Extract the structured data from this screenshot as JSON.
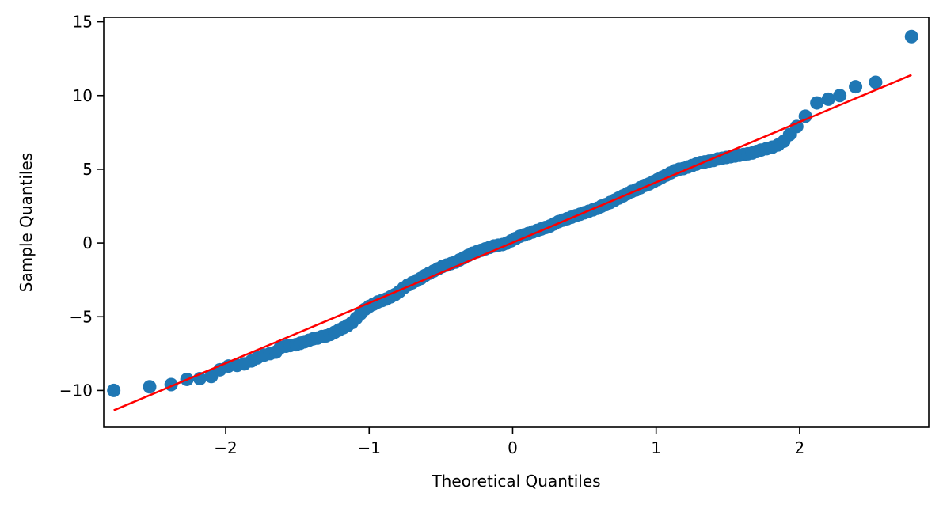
{
  "chart_data": {
    "type": "scatter",
    "title": "",
    "xlabel": "Theoretical Quantiles",
    "ylabel": "Sample Quantiles",
    "xlim": [
      -2.85,
      2.9
    ],
    "ylim": [
      -12.5,
      15.3
    ],
    "xticks": [
      -2,
      -1,
      0,
      1,
      2
    ],
    "xtick_labels": [
      "−2",
      "−1",
      "0",
      "1",
      "2"
    ],
    "yticks": [
      -10,
      -5,
      0,
      5,
      10,
      15
    ],
    "ytick_labels": [
      "−10",
      "−5",
      "0",
      "5",
      "10",
      "15"
    ],
    "grid": false,
    "legend": "none",
    "colors": {
      "points": "#1f77b4",
      "line": "#ff0000",
      "axes": "#000000"
    },
    "reference_line": {
      "x": [
        -2.78,
        2.78
      ],
      "y": [
        -11.35,
        11.4
      ]
    },
    "series": [
      {
        "points": [
          [
            -2.78,
            -10.0
          ],
          [
            -2.53,
            -9.75
          ],
          [
            -2.38,
            -9.6
          ],
          [
            -2.27,
            -9.25
          ],
          [
            -2.18,
            -9.2
          ],
          [
            -2.1,
            -9.05
          ],
          [
            -2.04,
            -8.6
          ],
          [
            -1.98,
            -8.35
          ],
          [
            -1.92,
            -8.3
          ],
          [
            -1.87,
            -8.2
          ],
          [
            -1.82,
            -8.0
          ],
          [
            -1.78,
            -7.8
          ],
          [
            -1.73,
            -7.6
          ],
          [
            -1.69,
            -7.5
          ],
          [
            -1.65,
            -7.4
          ],
          [
            -1.62,
            -7.1
          ],
          [
            -1.58,
            -7.0
          ],
          [
            -1.55,
            -6.95
          ],
          [
            -1.51,
            -6.9
          ],
          [
            -1.48,
            -6.8
          ],
          [
            -1.45,
            -6.7
          ],
          [
            -1.42,
            -6.6
          ],
          [
            -1.39,
            -6.5
          ],
          [
            -1.36,
            -6.45
          ],
          [
            -1.33,
            -6.35
          ],
          [
            -1.3,
            -6.3
          ],
          [
            -1.27,
            -6.2
          ],
          [
            -1.24,
            -6.05
          ],
          [
            -1.21,
            -5.9
          ],
          [
            -1.18,
            -5.75
          ],
          [
            -1.15,
            -5.6
          ],
          [
            -1.12,
            -5.4
          ],
          [
            -1.09,
            -5.1
          ],
          [
            -1.06,
            -4.8
          ],
          [
            -1.03,
            -4.5
          ],
          [
            -1.0,
            -4.3
          ],
          [
            -0.97,
            -4.15
          ],
          [
            -0.94,
            -4.0
          ],
          [
            -0.91,
            -3.9
          ],
          [
            -0.88,
            -3.8
          ],
          [
            -0.85,
            -3.65
          ],
          [
            -0.82,
            -3.5
          ],
          [
            -0.79,
            -3.3
          ],
          [
            -0.76,
            -3.05
          ],
          [
            -0.73,
            -2.85
          ],
          [
            -0.7,
            -2.7
          ],
          [
            -0.67,
            -2.55
          ],
          [
            -0.64,
            -2.4
          ],
          [
            -0.61,
            -2.2
          ],
          [
            -0.58,
            -2.05
          ],
          [
            -0.55,
            -1.9
          ],
          [
            -0.52,
            -1.75
          ],
          [
            -0.49,
            -1.6
          ],
          [
            -0.46,
            -1.5
          ],
          [
            -0.43,
            -1.4
          ],
          [
            -0.4,
            -1.3
          ],
          [
            -0.37,
            -1.15
          ],
          [
            -0.34,
            -1.0
          ],
          [
            -0.31,
            -0.85
          ],
          [
            -0.28,
            -0.7
          ],
          [
            -0.25,
            -0.6
          ],
          [
            -0.22,
            -0.5
          ],
          [
            -0.19,
            -0.4
          ],
          [
            -0.16,
            -0.3
          ],
          [
            -0.13,
            -0.2
          ],
          [
            -0.1,
            -0.15
          ],
          [
            -0.07,
            -0.1
          ],
          [
            -0.04,
            0.0
          ],
          [
            -0.01,
            0.15
          ],
          [
            0.02,
            0.3
          ],
          [
            0.05,
            0.45
          ],
          [
            0.08,
            0.55
          ],
          [
            0.11,
            0.65
          ],
          [
            0.14,
            0.75
          ],
          [
            0.17,
            0.85
          ],
          [
            0.2,
            0.95
          ],
          [
            0.23,
            1.05
          ],
          [
            0.26,
            1.15
          ],
          [
            0.29,
            1.3
          ],
          [
            0.32,
            1.45
          ],
          [
            0.35,
            1.55
          ],
          [
            0.38,
            1.65
          ],
          [
            0.41,
            1.75
          ],
          [
            0.44,
            1.85
          ],
          [
            0.47,
            1.95
          ],
          [
            0.5,
            2.05
          ],
          [
            0.53,
            2.15
          ],
          [
            0.56,
            2.25
          ],
          [
            0.59,
            2.35
          ],
          [
            0.62,
            2.5
          ],
          [
            0.65,
            2.6
          ],
          [
            0.68,
            2.75
          ],
          [
            0.71,
            2.9
          ],
          [
            0.74,
            3.05
          ],
          [
            0.77,
            3.2
          ],
          [
            0.8,
            3.35
          ],
          [
            0.83,
            3.5
          ],
          [
            0.86,
            3.6
          ],
          [
            0.89,
            3.75
          ],
          [
            0.92,
            3.9
          ],
          [
            0.95,
            4.0
          ],
          [
            0.98,
            4.15
          ],
          [
            1.01,
            4.3
          ],
          [
            1.04,
            4.45
          ],
          [
            1.07,
            4.6
          ],
          [
            1.1,
            4.75
          ],
          [
            1.13,
            4.9
          ],
          [
            1.16,
            5.0
          ],
          [
            1.19,
            5.05
          ],
          [
            1.22,
            5.15
          ],
          [
            1.25,
            5.25
          ],
          [
            1.28,
            5.35
          ],
          [
            1.31,
            5.45
          ],
          [
            1.34,
            5.5
          ],
          [
            1.37,
            5.55
          ],
          [
            1.4,
            5.6
          ],
          [
            1.43,
            5.7
          ],
          [
            1.46,
            5.75
          ],
          [
            1.49,
            5.8
          ],
          [
            1.52,
            5.85
          ],
          [
            1.55,
            5.9
          ],
          [
            1.58,
            5.95
          ],
          [
            1.61,
            6.0
          ],
          [
            1.64,
            6.05
          ],
          [
            1.67,
            6.1
          ],
          [
            1.7,
            6.2
          ],
          [
            1.73,
            6.3
          ],
          [
            1.77,
            6.4
          ],
          [
            1.81,
            6.5
          ],
          [
            1.85,
            6.65
          ],
          [
            1.89,
            6.9
          ],
          [
            1.93,
            7.35
          ],
          [
            1.98,
            7.9
          ],
          [
            2.04,
            8.6
          ],
          [
            2.12,
            9.5
          ],
          [
            2.2,
            9.75
          ],
          [
            2.28,
            10.0
          ],
          [
            2.39,
            10.6
          ],
          [
            2.53,
            10.9
          ],
          [
            2.78,
            14.0
          ]
        ]
      }
    ]
  }
}
